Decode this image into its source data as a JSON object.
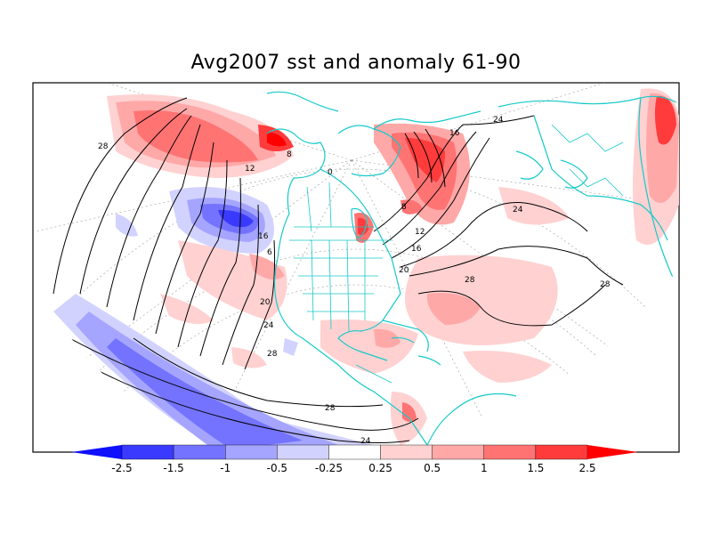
{
  "title": "Avg2007 sst and anomaly 61-90",
  "colors": {
    "coast": "#17c9c9",
    "contour": "#000000",
    "grid": "#9a9a9a",
    "warm_1": "#ffd1d1",
    "warm_2": "#ffa8a8",
    "warm_3": "#ff7373",
    "warm_4": "#ff3b3b",
    "warm_5": "#ff0000",
    "cool_1": "#d2d2ff",
    "cool_2": "#a5a5ff",
    "cool_3": "#7373ff",
    "cool_4": "#3a3aff",
    "cool_5": "#1010ff"
  },
  "colorbar": {
    "labels": [
      "-2.5",
      "-1.5",
      "-1",
      "-0.5",
      "-0.25",
      "0.25",
      "0.5",
      "1",
      "1.5",
      "2.5"
    ],
    "colors": [
      "#1010ff",
      "#3a3aff",
      "#7373ff",
      "#a5a5ff",
      "#d2d2ff",
      "#ffffff",
      "#ffd1d1",
      "#ffa8a8",
      "#ff7373",
      "#ff3b3b",
      "#ff0000"
    ]
  },
  "contour_labels": [
    {
      "id": "c28-nw",
      "text": "28"
    },
    {
      "id": "c12-gulf",
      "text": "12"
    },
    {
      "id": "c16-pac",
      "text": "16"
    },
    {
      "id": "c8-bering",
      "text": "8"
    },
    {
      "id": "c6-pac",
      "text": "6"
    },
    {
      "id": "c20-pac",
      "text": "20"
    },
    {
      "id": "c24-pac",
      "text": "24"
    },
    {
      "id": "c28-pac",
      "text": "28"
    },
    {
      "id": "c28-south",
      "text": "28"
    },
    {
      "id": "c24-south",
      "text": "24"
    },
    {
      "id": "c12-atl",
      "text": "12"
    },
    {
      "id": "c16-atl",
      "text": "16"
    },
    {
      "id": "c20-atl",
      "text": "20"
    },
    {
      "id": "c28-atl",
      "text": "28"
    },
    {
      "id": "c24-atl",
      "text": "24"
    },
    {
      "id": "c28-east",
      "text": "28"
    },
    {
      "id": "c24-ne",
      "text": "24"
    },
    {
      "id": "c16-ne",
      "text": "16"
    },
    {
      "id": "c8-gl",
      "text": "8"
    },
    {
      "id": "c0-arc",
      "text": "0"
    }
  ]
}
